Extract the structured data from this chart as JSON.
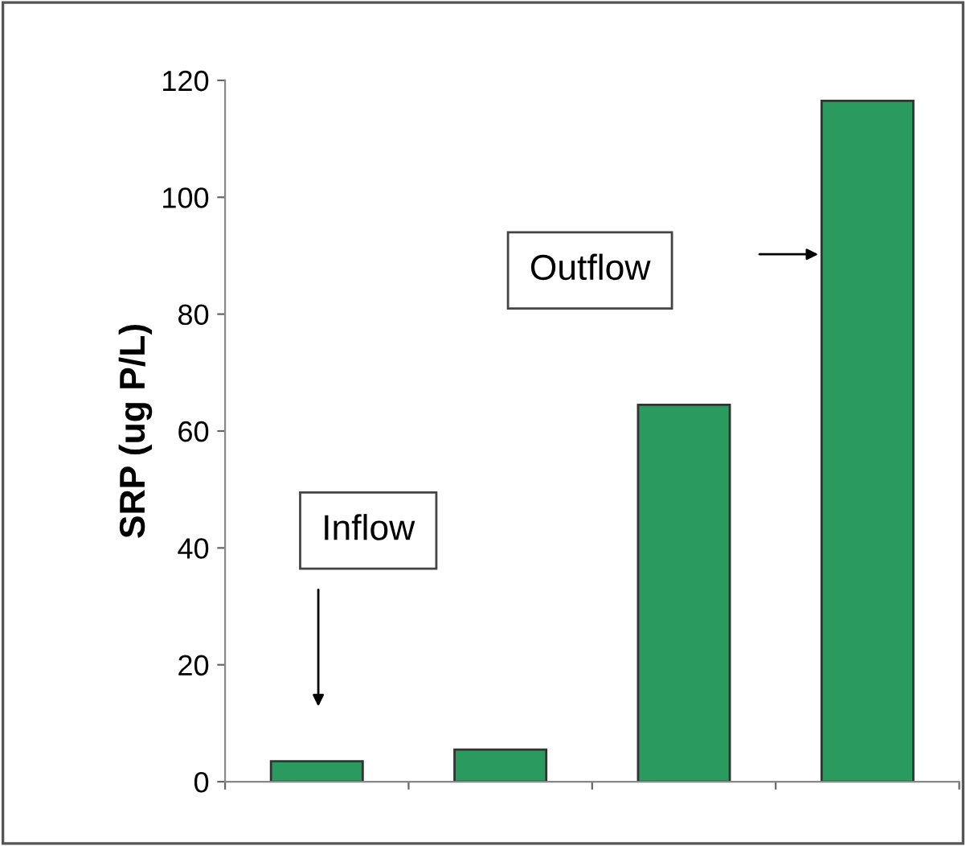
{
  "chart_data": {
    "type": "bar",
    "ylabel": "SRP (ug P/L)",
    "categories": [
      null,
      null,
      null,
      null
    ],
    "values": [
      3.5,
      5.5,
      64.5,
      116.5
    ],
    "color": "#2a9a5e",
    "ylim": [
      0,
      120
    ],
    "yticks": [
      0,
      20,
      40,
      60,
      80,
      100,
      120
    ],
    "grid": false,
    "legend": false,
    "annotations": [
      "Inflow",
      "Outflow"
    ]
  }
}
